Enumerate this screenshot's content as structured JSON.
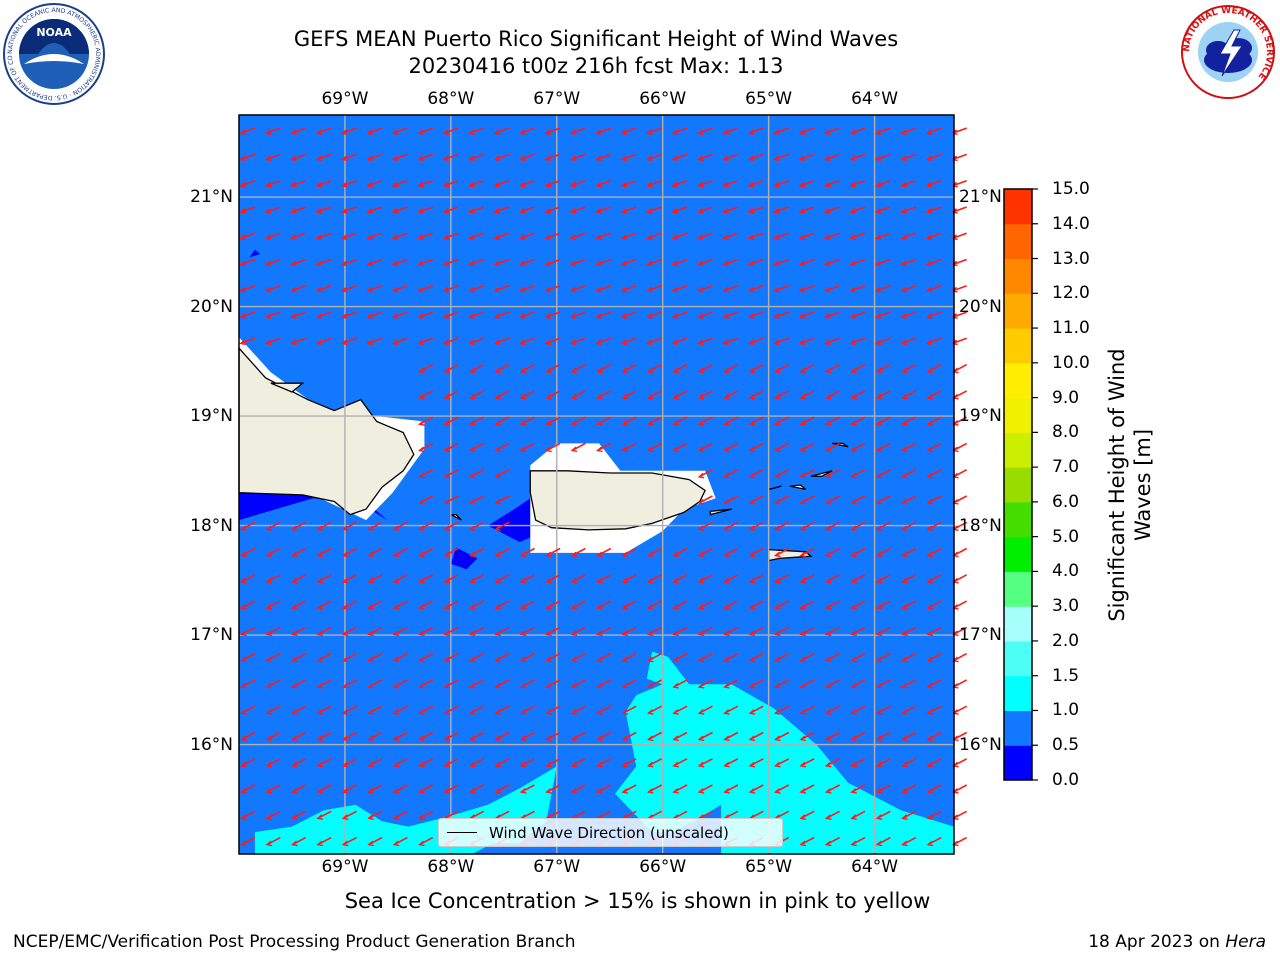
{
  "title": {
    "line1": "GEFS MEAN Puerto Rico Significant Height of Wind Waves",
    "line2": "20230416 t00z 216h fcst   Max: 1.13"
  },
  "map": {
    "lon_labels": [
      "69°W",
      "68°W",
      "67°W",
      "66°W",
      "65°W",
      "64°W"
    ],
    "lat_labels": [
      "21°N",
      "20°N",
      "19°N",
      "18°N",
      "17°N",
      "16°N"
    ],
    "lon_range": [
      -70.0,
      -63.25
    ],
    "lat_range": [
      15.0,
      21.75
    ],
    "field_colors": {
      "ocean": "#1278ff",
      "low": "#0000ff",
      "mid": "#00ffff",
      "land": "#efeedf",
      "arrow": "#ff1a1a",
      "grid": "#b0b0b0"
    },
    "legend_label": "Wind Wave Direction (unscaled)"
  },
  "colorbar": {
    "ticks": [
      "0.0",
      "0.5",
      "1.0",
      "1.5",
      "2.0",
      "3.0",
      "4.0",
      "5.0",
      "6.0",
      "7.0",
      "8.0",
      "9.0",
      "10.0",
      "11.0",
      "12.0",
      "13.0",
      "14.0",
      "15.0"
    ],
    "colors": [
      "#0000ff",
      "#1278ff",
      "#00ffff",
      "#4cfff5",
      "#a6fffb",
      "#55ff80",
      "#00ee00",
      "#44dd00",
      "#99dd00",
      "#ccee00",
      "#f0f000",
      "#ffee00",
      "#ffcc00",
      "#ffaa00",
      "#ff8800",
      "#ff6600",
      "#ff3300",
      "#ff0000"
    ],
    "label_line1": "Significant Height of Wind",
    "label_line2": "Waves [m]"
  },
  "subcaption": "Sea Ice Concentration > 15% is shown in pink to yellow",
  "footer": {
    "left": "NCEP/EMC/Verification Post Processing Product Generation Branch",
    "right_prefix": "18 Apr 2023 on ",
    "right_host": "Hera"
  },
  "logos": {
    "noaa_text": "NOAA",
    "noaa_ring": "NATIONAL OCEANIC AND ATMOSPHERIC ADMINISTRATION · U.S. DEPARTMENT OF COMMERCE",
    "nws_ring": "NATIONAL WEATHER SERVICE"
  }
}
